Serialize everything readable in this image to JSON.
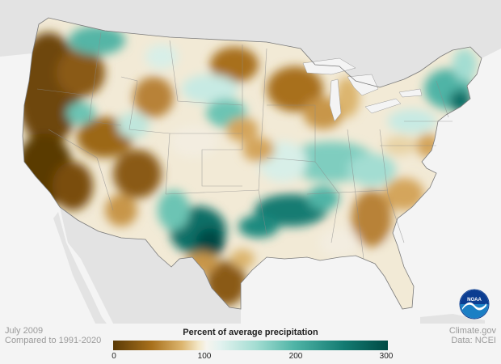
{
  "map": {
    "subject": "Percent of average precipitation, contiguous United States",
    "legend_title": "Percent of average precipitation",
    "legend_ticks": [
      "0",
      "100",
      "200",
      "300"
    ],
    "colors": {
      "very_dry": "#5a3a06",
      "dry": "#a8701c",
      "slightly_dry": "#dcb56e",
      "near_average": "#f6f4ee",
      "slightly_wet": "#a3ddd2",
      "wet": "#4fb4a6",
      "very_wet": "#004a44",
      "land_outside": "#e3e3e3",
      "water": "#f4f4f4"
    }
  },
  "footer": {
    "period": "July 2009",
    "baseline": "Compared to 1991-2020",
    "credit": "Climate.gov",
    "data_source": "Data: NCEI"
  },
  "logo": {
    "name": "NOAA"
  }
}
